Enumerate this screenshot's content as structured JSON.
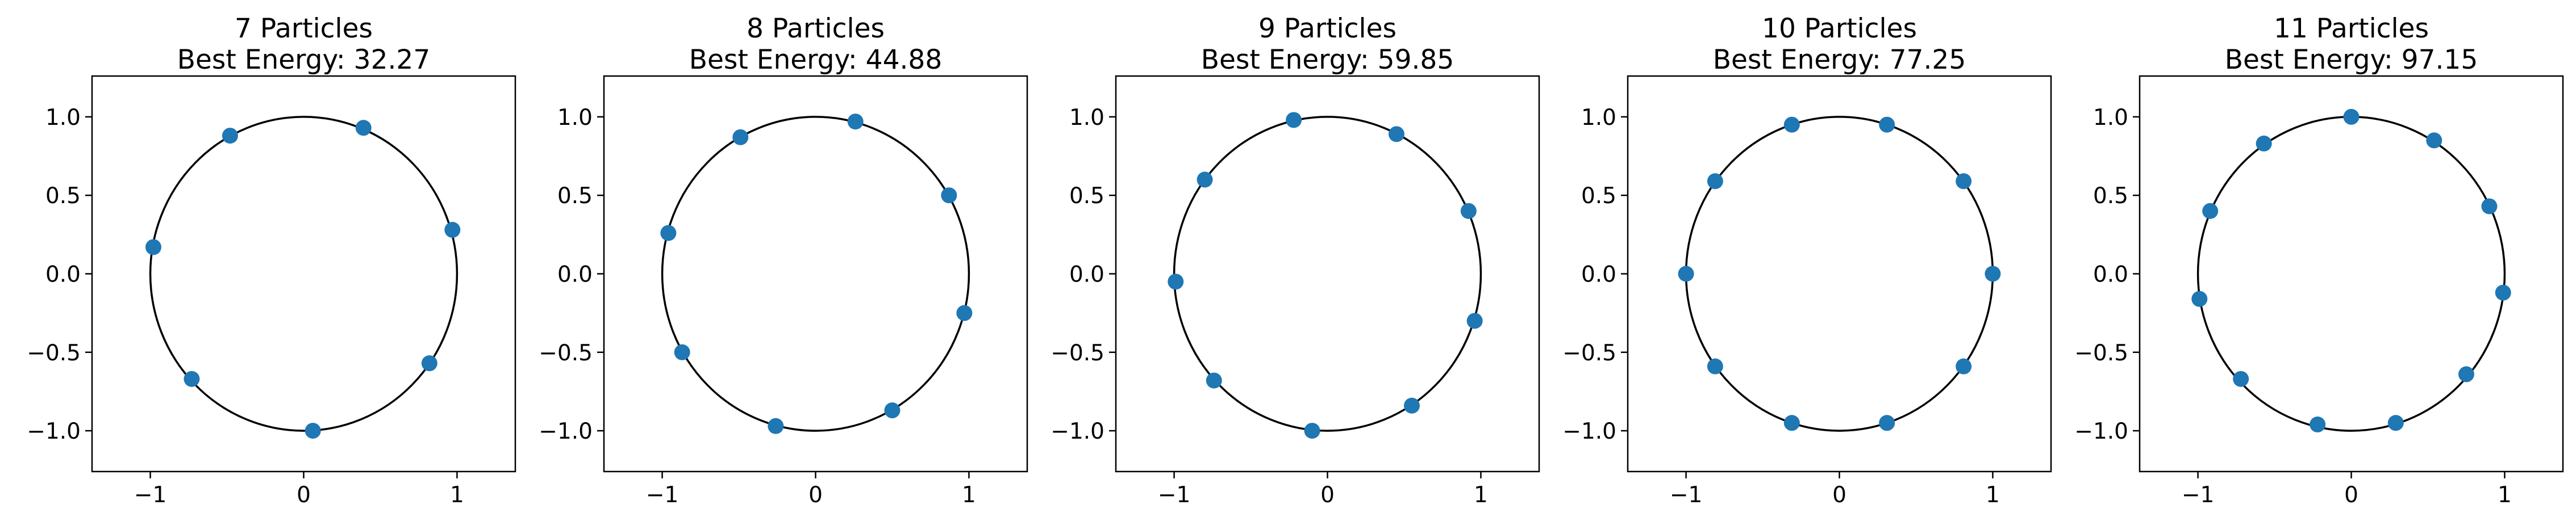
{
  "chart_data": [
    {
      "type": "scatter",
      "title": "7 Particles",
      "subtitle": "Best Energy: 32.27",
      "xlim": [
        -1.38,
        1.38
      ],
      "ylim": [
        -1.26,
        1.26
      ],
      "xticks": [
        -1,
        0,
        1
      ],
      "xtick_labels": [
        "−1",
        "0",
        "1"
      ],
      "yticks": [
        -1.0,
        -0.5,
        0.0,
        0.5,
        1.0
      ],
      "ytick_labels": [
        "−1.0",
        "−0.5",
        "0.0",
        "0.5",
        "1.0"
      ],
      "grid": false,
      "circle": {
        "center": [
          0,
          0
        ],
        "radius": 1
      },
      "points": [
        [
          0.39,
          0.93
        ],
        [
          -0.48,
          0.88
        ],
        [
          -0.98,
          0.17
        ],
        [
          -0.73,
          -0.67
        ],
        [
          0.06,
          -1.0
        ],
        [
          0.82,
          -0.57
        ],
        [
          0.97,
          0.28
        ]
      ]
    },
    {
      "type": "scatter",
      "title": "8 Particles",
      "subtitle": "Best Energy: 44.88",
      "xlim": [
        -1.38,
        1.38
      ],
      "ylim": [
        -1.26,
        1.26
      ],
      "xticks": [
        -1,
        0,
        1
      ],
      "xtick_labels": [
        "−1",
        "0",
        "1"
      ],
      "yticks": [
        -1.0,
        -0.5,
        0.0,
        0.5,
        1.0
      ],
      "ytick_labels": [
        "−1.0",
        "−0.5",
        "0.0",
        "0.5",
        "1.0"
      ],
      "grid": false,
      "circle": {
        "center": [
          0,
          0
        ],
        "radius": 1
      },
      "points": [
        [
          0.26,
          0.97
        ],
        [
          -0.49,
          0.87
        ],
        [
          -0.96,
          0.26
        ],
        [
          -0.87,
          -0.5
        ],
        [
          -0.26,
          -0.97
        ],
        [
          0.5,
          -0.87
        ],
        [
          0.97,
          -0.25
        ],
        [
          0.87,
          0.5
        ]
      ]
    },
    {
      "type": "scatter",
      "title": "9 Particles",
      "subtitle": "Best Energy: 59.85",
      "xlim": [
        -1.38,
        1.38
      ],
      "ylim": [
        -1.26,
        1.26
      ],
      "xticks": [
        -1,
        0,
        1
      ],
      "xtick_labels": [
        "−1",
        "0",
        "1"
      ],
      "yticks": [
        -1.0,
        -0.5,
        0.0,
        0.5,
        1.0
      ],
      "ytick_labels": [
        "−1.0",
        "−0.5",
        "0.0",
        "0.5",
        "1.0"
      ],
      "grid": false,
      "circle": {
        "center": [
          0,
          0
        ],
        "radius": 1
      },
      "points": [
        [
          -0.22,
          0.98
        ],
        [
          0.45,
          0.89
        ],
        [
          0.92,
          0.4
        ],
        [
          0.96,
          -0.3
        ],
        [
          0.55,
          -0.84
        ],
        [
          -0.1,
          -1.0
        ],
        [
          -0.74,
          -0.68
        ],
        [
          -0.99,
          -0.05
        ],
        [
          -0.8,
          0.6
        ]
      ]
    },
    {
      "type": "scatter",
      "title": "10 Particles",
      "subtitle": "Best Energy: 77.25",
      "xlim": [
        -1.38,
        1.38
      ],
      "ylim": [
        -1.26,
        1.26
      ],
      "xticks": [
        -1,
        0,
        1
      ],
      "xtick_labels": [
        "−1",
        "0",
        "1"
      ],
      "yticks": [
        -1.0,
        -0.5,
        0.0,
        0.5,
        1.0
      ],
      "ytick_labels": [
        "−1.0",
        "−0.5",
        "0.0",
        "0.5",
        "1.0"
      ],
      "grid": false,
      "circle": {
        "center": [
          0,
          0
        ],
        "radius": 1
      },
      "points": [
        [
          0.31,
          0.95
        ],
        [
          -0.31,
          0.95
        ],
        [
          -0.81,
          0.59
        ],
        [
          -1.0,
          0.0
        ],
        [
          -0.81,
          -0.59
        ],
        [
          -0.31,
          -0.95
        ],
        [
          0.31,
          -0.95
        ],
        [
          0.81,
          -0.59
        ],
        [
          1.0,
          0.0
        ],
        [
          0.81,
          0.59
        ]
      ]
    },
    {
      "type": "scatter",
      "title": "11 Particles",
      "subtitle": "Best Energy: 97.15",
      "xlim": [
        -1.38,
        1.38
      ],
      "ylim": [
        -1.26,
        1.26
      ],
      "xticks": [
        -1,
        0,
        1
      ],
      "xtick_labels": [
        "−1",
        "0",
        "1"
      ],
      "yticks": [
        -1.0,
        -0.5,
        0.0,
        0.5,
        1.0
      ],
      "ytick_labels": [
        "−1.0",
        "−0.5",
        "0.0",
        "0.5",
        "1.0"
      ],
      "grid": false,
      "circle": {
        "center": [
          0,
          0
        ],
        "radius": 1
      },
      "points": [
        [
          0.0,
          1.0
        ],
        [
          0.54,
          0.85
        ],
        [
          0.9,
          0.43
        ],
        [
          0.99,
          -0.12
        ],
        [
          0.75,
          -0.64
        ],
        [
          0.29,
          -0.95
        ],
        [
          -0.22,
          -0.96
        ],
        [
          -0.72,
          -0.67
        ],
        [
          -0.99,
          -0.16
        ],
        [
          -0.92,
          0.4
        ],
        [
          -0.57,
          0.83
        ]
      ]
    }
  ],
  "colors": {
    "marker": "#1f77b4",
    "circle": "#000000",
    "axes": "#000000"
  }
}
